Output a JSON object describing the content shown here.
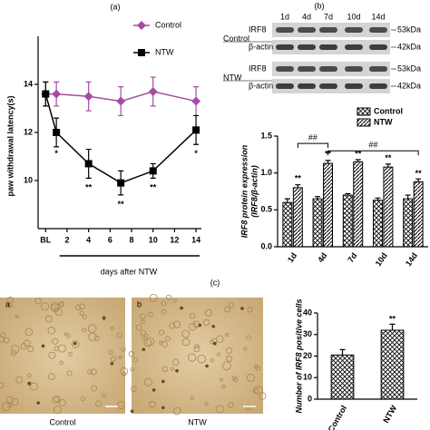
{
  "chart_data": [
    {
      "type": "line",
      "title": "(a)",
      "y_label": "paw withdrawal latency(s)",
      "x_label": "days after NTW",
      "xlim": [
        -0.7,
        14.5
      ],
      "xticks": [
        {
          "value": 0,
          "label": "BL"
        },
        2,
        4,
        6,
        8,
        10,
        12,
        14
      ],
      "ylim": [
        8,
        16
      ],
      "yticks": [
        10,
        12,
        14
      ],
      "legend": "upper right",
      "series": [
        {
          "name": "Control",
          "color": "#a64ca6",
          "marker": "diamond",
          "x": [
            0,
            1,
            4,
            7,
            10,
            14
          ],
          "values": [
            13.6,
            13.6,
            13.5,
            13.3,
            13.7,
            13.3
          ],
          "errors": [
            0.5,
            0.5,
            0.6,
            0.6,
            0.6,
            0.6
          ]
        },
        {
          "name": "NTW",
          "color": "#000000",
          "marker": "square",
          "x": [
            0,
            1,
            4,
            7,
            10,
            14
          ],
          "values": [
            13.6,
            12.0,
            10.7,
            9.9,
            10.4,
            12.1
          ],
          "errors": [
            0.5,
            0.6,
            0.6,
            0.5,
            0.3,
            0.6
          ]
        }
      ],
      "annotations": [
        {
          "text": "*",
          "x": 1,
          "y": 11.1
        },
        {
          "text": "**",
          "x": 4,
          "y": 9.7
        },
        {
          "text": "**",
          "x": 7,
          "y": 9.0
        },
        {
          "text": "**",
          "x": 10,
          "y": 9.7
        },
        {
          "text": "*",
          "x": 14,
          "y": 11.1
        }
      ]
    },
    {
      "type": "bar",
      "y_label": [
        "IRF8 protein expression",
        "(IRF8/β-actin)"
      ],
      "categories": [
        "1d",
        "4d",
        "7d",
        "10d",
        "14d"
      ],
      "ylim": [
        0,
        1.5
      ],
      "yticks": [
        {
          "value": 0,
          "label": "0.0"
        },
        {
          "value": 0.5,
          "label": "0.5"
        },
        {
          "value": 1,
          "label": "1.0"
        },
        {
          "value": 1.5,
          "label": "1.5"
        }
      ],
      "legend": "upper right",
      "series": [
        {
          "name": "Control",
          "color": "#000000",
          "pattern": "crosshatch",
          "values": [
            0.6,
            0.65,
            0.7,
            0.63,
            0.65
          ],
          "errors": [
            0.05,
            0.03,
            0.02,
            0.03,
            0.05
          ]
        },
        {
          "name": "NTW",
          "color": "#000000",
          "pattern": "diagonal",
          "values": [
            0.8,
            1.13,
            1.15,
            1.08,
            0.88
          ],
          "errors": [
            0.04,
            0.04,
            0.03,
            0.04,
            0.04
          ]
        }
      ],
      "annotations": [
        {
          "text": "**",
          "category": "1d",
          "series": "NTW",
          "y": 0.92
        },
        {
          "text": "**",
          "category": "4d",
          "series": "NTW",
          "y": 1.25
        },
        {
          "text": "**",
          "category": "7d",
          "series": "NTW",
          "y": 1.25
        },
        {
          "text": "**",
          "category": "10d",
          "series": "NTW",
          "y": 1.2
        },
        {
          "text": "**",
          "category": "14d",
          "series": "NTW",
          "y": 0.99
        }
      ],
      "brackets": [
        {
          "from": "1d",
          "to": "4d",
          "label": "##",
          "y": 1.4
        },
        {
          "from": "4d",
          "to": "14d",
          "label": "##",
          "y": 1.3
        }
      ]
    },
    {
      "type": "bar",
      "y_label": [
        "Number of IRF8 positive cells"
      ],
      "categories": [
        "Control",
        "NTW"
      ],
      "ylim": [
        0,
        40
      ],
      "yticks": [
        0,
        10,
        20,
        30,
        40
      ],
      "series": [
        {
          "color": "#000000",
          "pattern": "crosshatch",
          "values": [
            20.5,
            32
          ],
          "errors": [
            2.5,
            2.8
          ]
        }
      ],
      "annotations": [
        {
          "text": "**",
          "category": "NTW",
          "y": 37
        }
      ]
    }
  ],
  "blot": {
    "label": "(b)",
    "lanes": [
      "1d",
      "4d",
      "7d",
      "10d",
      "14d"
    ],
    "groups": [
      {
        "name": "Control",
        "rows": [
          {
            "protein": "IRF8",
            "size": "53kDa"
          },
          {
            "protein": "β-actin",
            "size": "42kDa"
          }
        ]
      },
      {
        "name": "NTW",
        "rows": [
          {
            "protein": "IRF8",
            "size": "53kDa"
          },
          {
            "protein": "β-actin",
            "size": "42kDa"
          }
        ]
      }
    ]
  },
  "micrographs": {
    "label": "(c)",
    "panels": [
      {
        "letter": "a",
        "caption": "Control"
      },
      {
        "letter": "b",
        "caption": "NTW"
      }
    ]
  }
}
